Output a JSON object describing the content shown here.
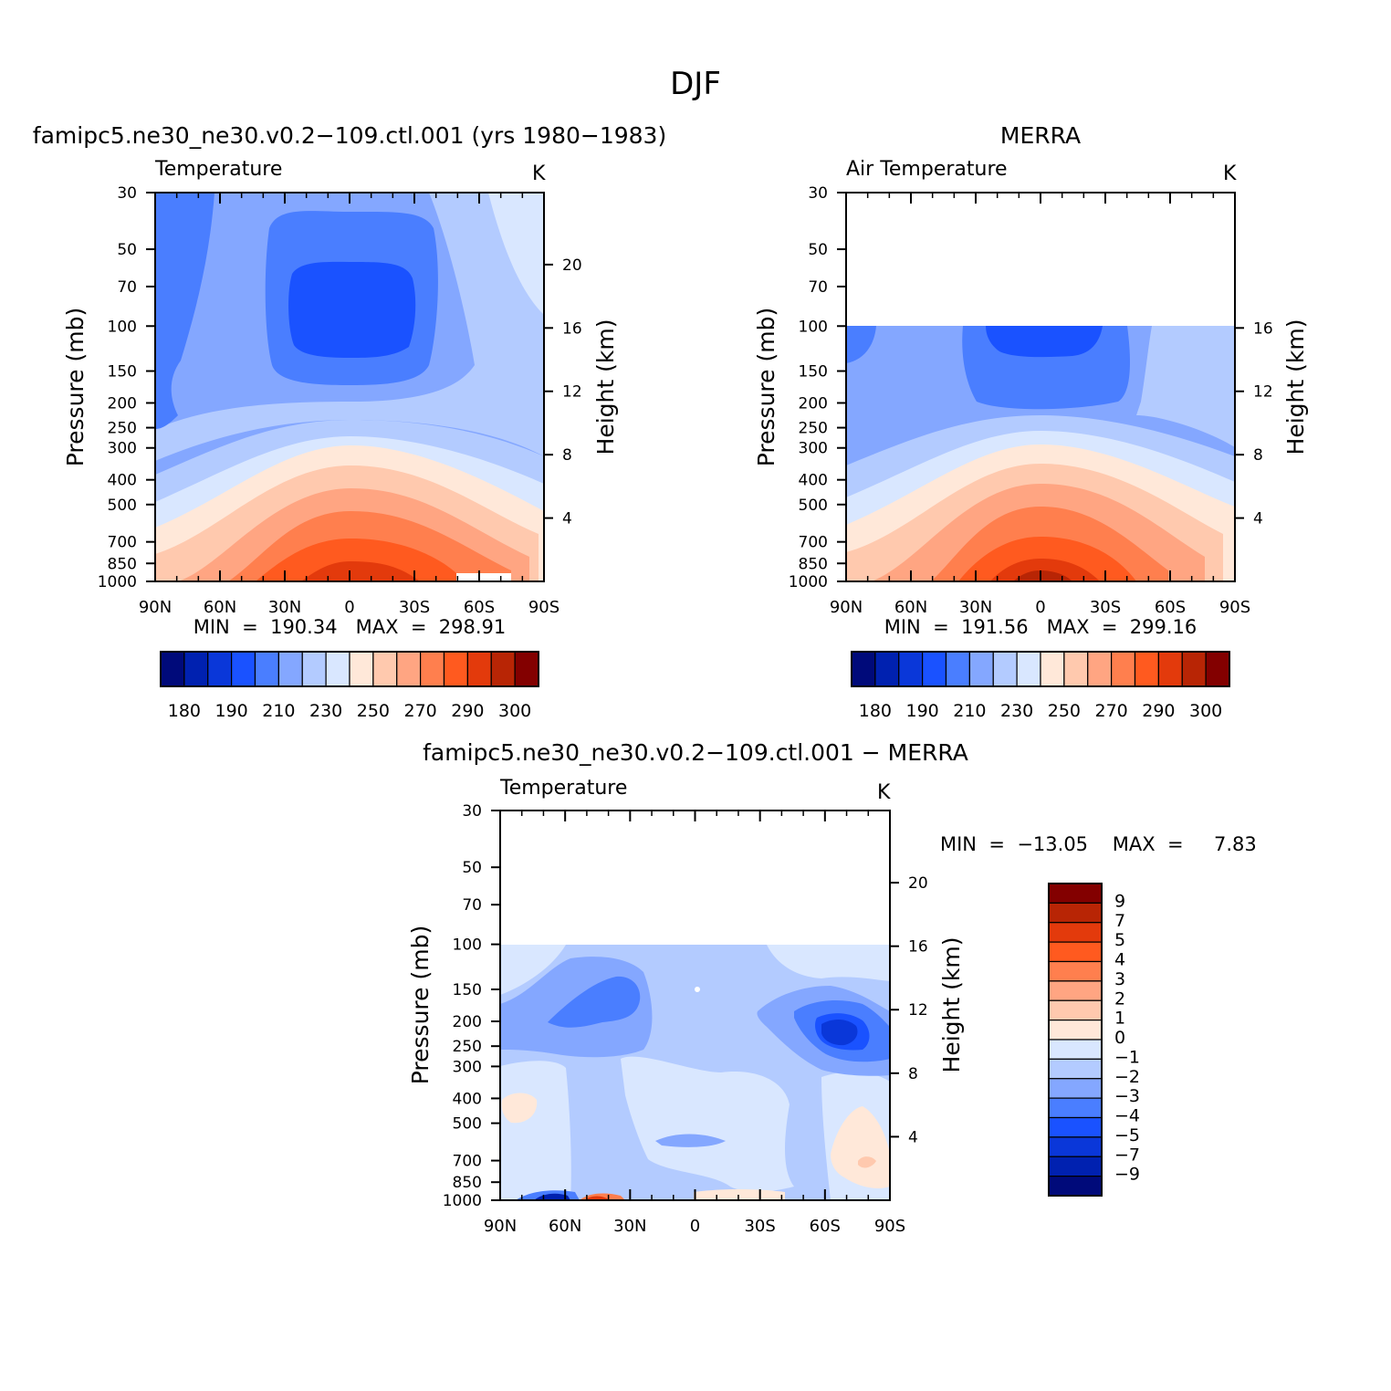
{
  "figure_title": "DJF",
  "colors": {
    "temp_scale": [
      "#000a7a",
      "#0021b0",
      "#0a37d9",
      "#1a52ff",
      "#4a7eff",
      "#84a7ff",
      "#b3cbff",
      "#d9e7ff",
      "#ffe8d9",
      "#ffc9ae",
      "#ffa582",
      "#ff7f4e",
      "#ff5a1f",
      "#e33a0c",
      "#b82505",
      "#830000"
    ],
    "diff_scale": [
      "#000a7a",
      "#0021b0",
      "#0a37d9",
      "#1a52ff",
      "#4a7eff",
      "#84a7ff",
      "#b3cbff",
      "#d9e7ff",
      "#ffe8d9",
      "#ffc9ae",
      "#ffa582",
      "#ff7f4e",
      "#ff5a1f",
      "#e33a0c",
      "#b82505",
      "#830000"
    ]
  },
  "chart_data": [
    {
      "type": "heatmap",
      "panel": "model",
      "title": "famipc5.ne30_ne30.v0.2−109.ctl.001 (yrs 1980−1983)",
      "subtitle": "Temperature",
      "units": "K",
      "ylabel": "Pressure (mb)",
      "ylabel_right": "Height (km)",
      "x_ticks": [
        "90N",
        "60N",
        "30N",
        "0",
        "30S",
        "60S",
        "90S"
      ],
      "y_ticks": [
        "30",
        "50",
        "70",
        "100",
        "150",
        "200",
        "250",
        "300",
        "400",
        "500",
        "700",
        "850",
        "1000"
      ],
      "y_ticks_right": [
        "20",
        "16",
        "12",
        "8",
        "4"
      ],
      "min_label": "MIN",
      "min_value": "190.34",
      "max_label": "MAX",
      "max_value": "298.91",
      "colorbar_labels": [
        "180",
        "190",
        "210",
        "230",
        "250",
        "270",
        "290",
        "300"
      ],
      "x_values": [
        -90,
        90
      ],
      "ylim_mb": [
        1000,
        30
      ]
    },
    {
      "type": "heatmap",
      "panel": "obs",
      "title": "MERRA",
      "subtitle": "Air Temperature",
      "units": "K",
      "ylabel": "Pressure (mb)",
      "ylabel_right": "Height (km)",
      "x_ticks": [
        "90N",
        "60N",
        "30N",
        "0",
        "30S",
        "60S",
        "90S"
      ],
      "y_ticks": [
        "30",
        "50",
        "70",
        "100",
        "150",
        "200",
        "250",
        "300",
        "400",
        "500",
        "700",
        "850",
        "1000"
      ],
      "y_ticks_right": [
        "16",
        "12",
        "8",
        "4"
      ],
      "min_label": "MIN",
      "min_value": "191.56",
      "max_label": "MAX",
      "max_value": "299.16",
      "colorbar_labels": [
        "180",
        "190",
        "210",
        "230",
        "250",
        "270",
        "290",
        "300"
      ],
      "data_top_mb": 100,
      "ylim_mb": [
        1000,
        30
      ]
    },
    {
      "type": "heatmap",
      "panel": "diff",
      "title": "famipc5.ne30_ne30.v0.2−109.ctl.001 − MERRA",
      "subtitle": "Temperature",
      "units": "K",
      "ylabel": "Pressure (mb)",
      "ylabel_right": "Height (km)",
      "x_ticks": [
        "90N",
        "60N",
        "30N",
        "0",
        "30S",
        "60S",
        "90S"
      ],
      "y_ticks": [
        "30",
        "50",
        "70",
        "100",
        "150",
        "200",
        "250",
        "300",
        "400",
        "500",
        "700",
        "850",
        "1000"
      ],
      "y_ticks_right": [
        "20",
        "16",
        "12",
        "8",
        "4"
      ],
      "min_label": "MIN",
      "min_value": "−13.05",
      "max_label": "MAX",
      "max_value": "7.83",
      "colorbar_labels": [
        "9",
        "7",
        "5",
        "4",
        "3",
        "2",
        "1",
        "0",
        "−1",
        "−2",
        "−3",
        "−4",
        "−5",
        "−7",
        "−9"
      ],
      "data_top_mb": 100,
      "ylim_mb": [
        1000,
        30
      ]
    }
  ]
}
